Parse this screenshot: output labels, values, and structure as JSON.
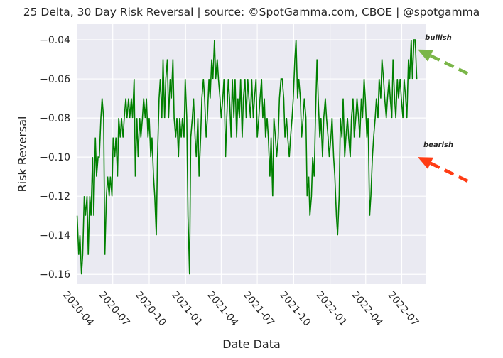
{
  "chart_data": {
    "type": "line",
    "title": "25 Delta, 30 Day Risk Reversal | source: ©SpotGamma.com, CBOE | @spotgamma",
    "xlabel": "Date Data",
    "ylabel": "Risk Reversal",
    "x_start": "2020-04-01",
    "x_end": "2022-09-01",
    "ylim": [
      -0.165,
      -0.032
    ],
    "x_ticks": [
      "2020-04",
      "2020-07",
      "2020-10",
      "2021-01",
      "2021-04",
      "2021-07",
      "2021-10",
      "2022-01",
      "2022-04",
      "2022-07"
    ],
    "y_ticks": [
      -0.04,
      -0.06,
      -0.08,
      -0.1,
      -0.12,
      -0.14,
      -0.16
    ],
    "y_tick_labels": [
      "−0.04",
      "−0.06",
      "−0.08",
      "−0.10",
      "−0.12",
      "−0.14",
      "−0.16"
    ],
    "grid": true,
    "series": [
      {
        "color": "#008000",
        "points": [
          [
            "2020-04-02",
            -0.13
          ],
          [
            "2020-04-06",
            -0.15
          ],
          [
            "2020-04-09",
            -0.14
          ],
          [
            "2020-04-13",
            -0.16
          ],
          [
            "2020-04-16",
            -0.15
          ],
          [
            "2020-04-20",
            -0.12
          ],
          [
            "2020-04-23",
            -0.13
          ],
          [
            "2020-04-27",
            -0.12
          ],
          [
            "2020-04-30",
            -0.15
          ],
          [
            "2020-05-04",
            -0.12
          ],
          [
            "2020-05-07",
            -0.13
          ],
          [
            "2020-05-11",
            -0.1
          ],
          [
            "2020-05-14",
            -0.13
          ],
          [
            "2020-05-18",
            -0.09
          ],
          [
            "2020-05-21",
            -0.11
          ],
          [
            "2020-05-25",
            -0.1
          ],
          [
            "2020-05-28",
            -0.1
          ],
          [
            "2020-06-01",
            -0.08
          ],
          [
            "2020-06-04",
            -0.07
          ],
          [
            "2020-06-08",
            -0.08
          ],
          [
            "2020-06-11",
            -0.15
          ],
          [
            "2020-06-15",
            -0.12
          ],
          [
            "2020-06-18",
            -0.11
          ],
          [
            "2020-06-22",
            -0.12
          ],
          [
            "2020-06-25",
            -0.11
          ],
          [
            "2020-06-29",
            -0.12
          ],
          [
            "2020-07-02",
            -0.09
          ],
          [
            "2020-07-06",
            -0.1
          ],
          [
            "2020-07-09",
            -0.09
          ],
          [
            "2020-07-13",
            -0.11
          ],
          [
            "2020-07-16",
            -0.08
          ],
          [
            "2020-07-20",
            -0.09
          ],
          [
            "2020-07-23",
            -0.08
          ],
          [
            "2020-07-27",
            -0.09
          ],
          [
            "2020-07-30",
            -0.08
          ],
          [
            "2020-08-03",
            -0.07
          ],
          [
            "2020-08-06",
            -0.08
          ],
          [
            "2020-08-10",
            -0.07
          ],
          [
            "2020-08-13",
            -0.08
          ],
          [
            "2020-08-17",
            -0.07
          ],
          [
            "2020-08-20",
            -0.08
          ],
          [
            "2020-08-24",
            -0.06
          ],
          [
            "2020-08-27",
            -0.11
          ],
          [
            "2020-08-31",
            -0.08
          ],
          [
            "2020-09-03",
            -0.1
          ],
          [
            "2020-09-07",
            -0.08
          ],
          [
            "2020-09-10",
            -0.09
          ],
          [
            "2020-09-14",
            -0.08
          ],
          [
            "2020-09-17",
            -0.07
          ],
          [
            "2020-09-21",
            -0.08
          ],
          [
            "2020-09-24",
            -0.07
          ],
          [
            "2020-09-28",
            -0.09
          ],
          [
            "2020-10-01",
            -0.08
          ],
          [
            "2020-10-05",
            -0.1
          ],
          [
            "2020-10-08",
            -0.09
          ],
          [
            "2020-10-12",
            -0.11
          ],
          [
            "2020-10-15",
            -0.12
          ],
          [
            "2020-10-19",
            -0.14
          ],
          [
            "2020-10-22",
            -0.1
          ],
          [
            "2020-10-26",
            -0.07
          ],
          [
            "2020-10-29",
            -0.06
          ],
          [
            "2020-11-02",
            -0.08
          ],
          [
            "2020-11-05",
            -0.05
          ],
          [
            "2020-11-09",
            -0.08
          ],
          [
            "2020-11-12",
            -0.06
          ],
          [
            "2020-11-16",
            -0.05
          ],
          [
            "2020-11-19",
            -0.08
          ],
          [
            "2020-11-23",
            -0.06
          ],
          [
            "2020-11-26",
            -0.07
          ],
          [
            "2020-11-30",
            -0.05
          ],
          [
            "2020-12-03",
            -0.08
          ],
          [
            "2020-12-07",
            -0.09
          ],
          [
            "2020-12-10",
            -0.08
          ],
          [
            "2020-12-14",
            -0.1
          ],
          [
            "2020-12-17",
            -0.08
          ],
          [
            "2020-12-21",
            -0.09
          ],
          [
            "2020-12-24",
            -0.08
          ],
          [
            "2020-12-28",
            -0.09
          ],
          [
            "2020-12-31",
            -0.06
          ],
          [
            "2021-01-04",
            -0.08
          ],
          [
            "2021-01-07",
            -0.13
          ],
          [
            "2021-01-11",
            -0.16
          ],
          [
            "2021-01-14",
            -0.09
          ],
          [
            "2021-01-18",
            -0.08
          ],
          [
            "2021-01-21",
            -0.07
          ],
          [
            "2021-01-25",
            -0.09
          ],
          [
            "2021-01-28",
            -0.1
          ],
          [
            "2021-02-01",
            -0.08
          ],
          [
            "2021-02-04",
            -0.11
          ],
          [
            "2021-02-08",
            -0.09
          ],
          [
            "2021-02-11",
            -0.07
          ],
          [
            "2021-02-15",
            -0.06
          ],
          [
            "2021-02-18",
            -0.07
          ],
          [
            "2021-02-22",
            -0.09
          ],
          [
            "2021-02-25",
            -0.08
          ],
          [
            "2021-03-01",
            -0.06
          ],
          [
            "2021-03-04",
            -0.07
          ],
          [
            "2021-03-08",
            -0.05
          ],
          [
            "2021-03-11",
            -0.06
          ],
          [
            "2021-03-15",
            -0.04
          ],
          [
            "2021-03-18",
            -0.06
          ],
          [
            "2021-03-22",
            -0.05
          ],
          [
            "2021-03-25",
            -0.06
          ],
          [
            "2021-03-29",
            -0.07
          ],
          [
            "2021-04-01",
            -0.08
          ],
          [
            "2021-04-05",
            -0.07
          ],
          [
            "2021-04-08",
            -0.06
          ],
          [
            "2021-04-12",
            -0.1
          ],
          [
            "2021-04-15",
            -0.08
          ],
          [
            "2021-04-19",
            -0.06
          ],
          [
            "2021-04-22",
            -0.07
          ],
          [
            "2021-04-26",
            -0.09
          ],
          [
            "2021-04-29",
            -0.06
          ],
          [
            "2021-05-03",
            -0.08
          ],
          [
            "2021-05-06",
            -0.06
          ],
          [
            "2021-05-10",
            -0.09
          ],
          [
            "2021-05-13",
            -0.07
          ],
          [
            "2021-05-17",
            -0.08
          ],
          [
            "2021-05-20",
            -0.06
          ],
          [
            "2021-05-24",
            -0.09
          ],
          [
            "2021-05-27",
            -0.07
          ],
          [
            "2021-05-31",
            -0.06
          ],
          [
            "2021-06-03",
            -0.08
          ],
          [
            "2021-06-07",
            -0.06
          ],
          [
            "2021-06-10",
            -0.07
          ],
          [
            "2021-06-14",
            -0.08
          ],
          [
            "2021-06-17",
            -0.06
          ],
          [
            "2021-06-21",
            -0.08
          ],
          [
            "2021-06-24",
            -0.07
          ],
          [
            "2021-06-28",
            -0.06
          ],
          [
            "2021-07-01",
            -0.09
          ],
          [
            "2021-07-05",
            -0.08
          ],
          [
            "2021-07-08",
            -0.07
          ],
          [
            "2021-07-12",
            -0.06
          ],
          [
            "2021-07-15",
            -0.08
          ],
          [
            "2021-07-19",
            -0.07
          ],
          [
            "2021-07-22",
            -0.09
          ],
          [
            "2021-07-26",
            -0.08
          ],
          [
            "2021-07-29",
            -0.09
          ],
          [
            "2021-08-02",
            -0.11
          ],
          [
            "2021-08-05",
            -0.09
          ],
          [
            "2021-08-09",
            -0.12
          ],
          [
            "2021-08-12",
            -0.08
          ],
          [
            "2021-08-16",
            -0.09
          ],
          [
            "2021-08-19",
            -0.1
          ],
          [
            "2021-08-23",
            -0.09
          ],
          [
            "2021-08-26",
            -0.07
          ],
          [
            "2021-08-30",
            -0.06
          ],
          [
            "2021-09-02",
            -0.06
          ],
          [
            "2021-09-06",
            -0.07
          ],
          [
            "2021-09-09",
            -0.09
          ],
          [
            "2021-09-13",
            -0.08
          ],
          [
            "2021-09-16",
            -0.09
          ],
          [
            "2021-09-20",
            -0.1
          ],
          [
            "2021-09-23",
            -0.09
          ],
          [
            "2021-09-27",
            -0.08
          ],
          [
            "2021-09-30",
            -0.07
          ],
          [
            "2021-10-04",
            -0.05
          ],
          [
            "2021-10-07",
            -0.04
          ],
          [
            "2021-10-11",
            -0.07
          ],
          [
            "2021-10-14",
            -0.06
          ],
          [
            "2021-10-18",
            -0.07
          ],
          [
            "2021-10-21",
            -0.09
          ],
          [
            "2021-10-25",
            -0.08
          ],
          [
            "2021-10-28",
            -0.07
          ],
          [
            "2021-11-01",
            -0.08
          ],
          [
            "2021-11-04",
            -0.12
          ],
          [
            "2021-11-08",
            -0.11
          ],
          [
            "2021-11-11",
            -0.13
          ],
          [
            "2021-11-15",
            -0.12
          ],
          [
            "2021-11-18",
            -0.1
          ],
          [
            "2021-11-22",
            -0.11
          ],
          [
            "2021-11-25",
            -0.08
          ],
          [
            "2021-11-29",
            -0.05
          ],
          [
            "2021-12-02",
            -0.07
          ],
          [
            "2021-12-06",
            -0.09
          ],
          [
            "2021-12-09",
            -0.08
          ],
          [
            "2021-12-13",
            -0.1
          ],
          [
            "2021-12-16",
            -0.08
          ],
          [
            "2021-12-20",
            -0.07
          ],
          [
            "2021-12-23",
            -0.08
          ],
          [
            "2021-12-27",
            -0.09
          ],
          [
            "2021-12-30",
            -0.1
          ],
          [
            "2022-01-03",
            -0.09
          ],
          [
            "2022-01-06",
            -0.08
          ],
          [
            "2022-01-10",
            -0.1
          ],
          [
            "2022-01-13",
            -0.11
          ],
          [
            "2022-01-17",
            -0.13
          ],
          [
            "2022-01-20",
            -0.14
          ],
          [
            "2022-01-24",
            -0.12
          ],
          [
            "2022-01-27",
            -0.08
          ],
          [
            "2022-01-31",
            -0.09
          ],
          [
            "2022-02-03",
            -0.07
          ],
          [
            "2022-02-07",
            -0.1
          ],
          [
            "2022-02-10",
            -0.09
          ],
          [
            "2022-02-14",
            -0.08
          ],
          [
            "2022-02-17",
            -0.09
          ],
          [
            "2022-02-21",
            -0.1
          ],
          [
            "2022-02-24",
            -0.08
          ],
          [
            "2022-02-28",
            -0.07
          ],
          [
            "2022-03-03",
            -0.09
          ],
          [
            "2022-03-07",
            -0.08
          ],
          [
            "2022-03-10",
            -0.07
          ],
          [
            "2022-03-14",
            -0.08
          ],
          [
            "2022-03-17",
            -0.09
          ],
          [
            "2022-03-21",
            -0.07
          ],
          [
            "2022-03-24",
            -0.08
          ],
          [
            "2022-03-28",
            -0.06
          ],
          [
            "2022-03-31",
            -0.07
          ],
          [
            "2022-04-04",
            -0.09
          ],
          [
            "2022-04-07",
            -0.08
          ],
          [
            "2022-04-11",
            -0.13
          ],
          [
            "2022-04-14",
            -0.12
          ],
          [
            "2022-04-18",
            -0.1
          ],
          [
            "2022-04-21",
            -0.09
          ],
          [
            "2022-04-25",
            -0.08
          ],
          [
            "2022-04-28",
            -0.07
          ],
          [
            "2022-05-02",
            -0.08
          ],
          [
            "2022-05-05",
            -0.06
          ],
          [
            "2022-05-09",
            -0.07
          ],
          [
            "2022-05-12",
            -0.05
          ],
          [
            "2022-05-16",
            -0.06
          ],
          [
            "2022-05-19",
            -0.07
          ],
          [
            "2022-05-23",
            -0.08
          ],
          [
            "2022-05-26",
            -0.07
          ],
          [
            "2022-05-30",
            -0.06
          ],
          [
            "2022-06-02",
            -0.07
          ],
          [
            "2022-06-06",
            -0.08
          ],
          [
            "2022-06-09",
            -0.05
          ],
          [
            "2022-06-13",
            -0.07
          ],
          [
            "2022-06-16",
            -0.08
          ],
          [
            "2022-06-20",
            -0.06
          ],
          [
            "2022-06-23",
            -0.07
          ],
          [
            "2022-06-27",
            -0.06
          ],
          [
            "2022-06-30",
            -0.07
          ],
          [
            "2022-07-04",
            -0.08
          ],
          [
            "2022-07-07",
            -0.06
          ],
          [
            "2022-07-11",
            -0.07
          ],
          [
            "2022-07-14",
            -0.08
          ],
          [
            "2022-07-18",
            -0.05
          ],
          [
            "2022-07-21",
            -0.06
          ],
          [
            "2022-07-25",
            -0.04
          ],
          [
            "2022-07-28",
            -0.06
          ],
          [
            "2022-08-01",
            -0.04
          ],
          [
            "2022-08-04",
            -0.04
          ],
          [
            "2022-08-08",
            -0.06
          ]
        ]
      }
    ],
    "annotations": [
      {
        "text": "bullish",
        "color": "#7ab648",
        "anchor_y": -0.045
      },
      {
        "text": "bearish",
        "color": "#ff3c14",
        "anchor_y": -0.1
      }
    ]
  }
}
